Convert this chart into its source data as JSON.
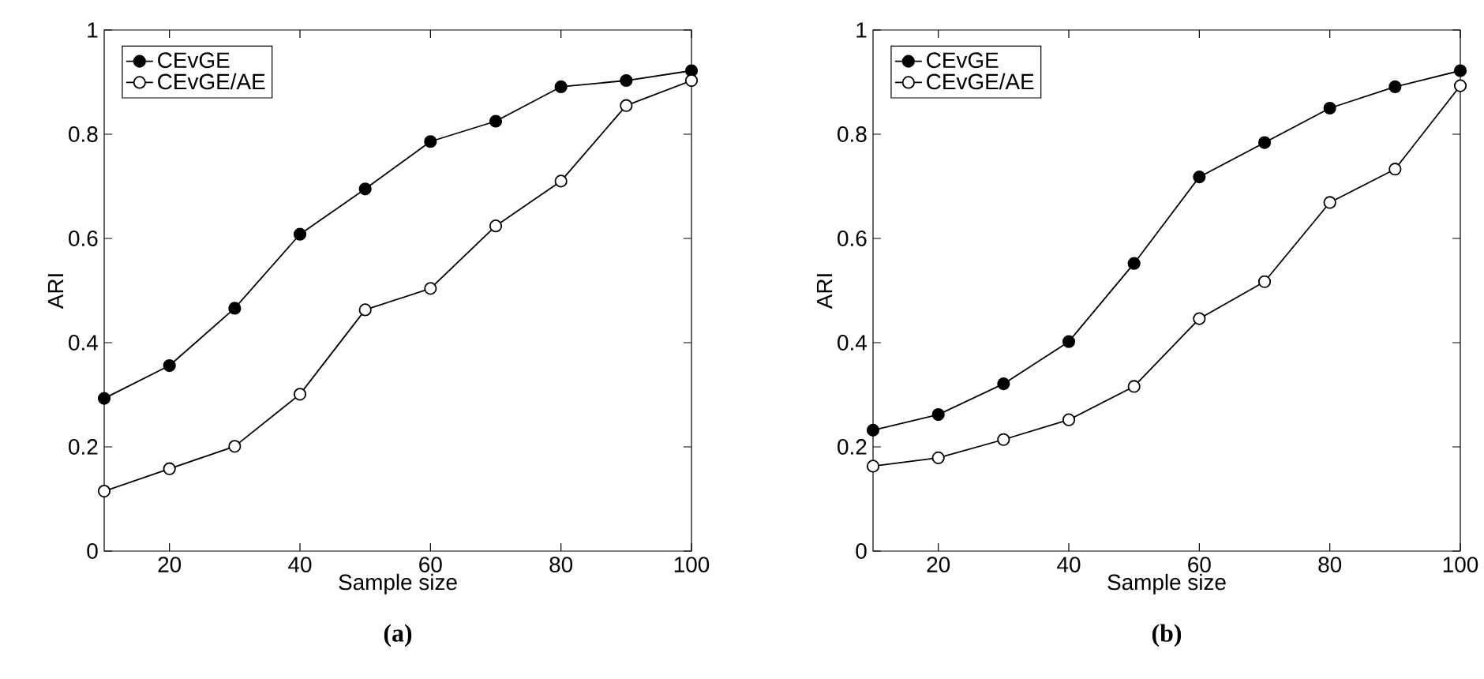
{
  "chart_data": [
    {
      "type": "line",
      "title": "(a)",
      "xlabel": "Sample size",
      "ylabel": "ARI",
      "x": [
        10,
        20,
        30,
        40,
        50,
        60,
        70,
        80,
        90,
        100
      ],
      "xlim": [
        10,
        100
      ],
      "ylim": [
        0,
        1
      ],
      "xticks": [
        20,
        40,
        60,
        80,
        100
      ],
      "yticks": [
        0,
        0.2,
        0.4,
        0.6,
        0.8,
        1
      ],
      "legend": "top left",
      "marker": "circle",
      "grid": false,
      "series": [
        {
          "name": "CEvGE",
          "color": "#000000",
          "values": [
            0.293,
            0.356,
            0.466,
            0.608,
            0.695,
            0.786,
            0.825,
            0.891,
            0.903,
            0.922
          ]
        },
        {
          "name": "CEvGE/AE",
          "color": "#000000",
          "values": [
            0.115,
            0.158,
            0.201,
            0.301,
            0.463,
            0.504,
            0.624,
            0.71,
            0.855,
            0.903
          ]
        }
      ]
    },
    {
      "type": "line",
      "title": "(b)",
      "xlabel": "Sample size",
      "ylabel": "ARI",
      "x": [
        10,
        20,
        30,
        40,
        50,
        60,
        70,
        80,
        90,
        100
      ],
      "xlim": [
        10,
        100
      ],
      "ylim": [
        0,
        1
      ],
      "xticks": [
        20,
        40,
        60,
        80,
        100
      ],
      "yticks": [
        0,
        0.2,
        0.4,
        0.6,
        0.8,
        1
      ],
      "legend": "top left",
      "marker": "circle",
      "grid": false,
      "series": [
        {
          "name": "CEvGE",
          "color": "#000000",
          "values": [
            0.232,
            0.262,
            0.321,
            0.402,
            0.552,
            0.718,
            0.784,
            0.85,
            0.891,
            0.922
          ]
        },
        {
          "name": "CEvGE/AE",
          "color": "#000000",
          "values": [
            0.163,
            0.179,
            0.214,
            0.252,
            0.316,
            0.446,
            0.517,
            0.669,
            0.733,
            0.893
          ]
        }
      ]
    }
  ]
}
